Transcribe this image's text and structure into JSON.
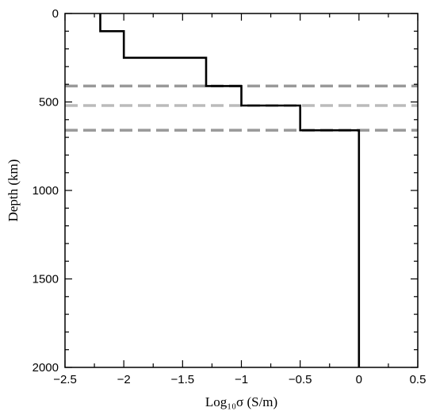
{
  "chart_data": {
    "type": "line",
    "xlabel": "Log₁₀σ (S/m)",
    "ylabel": "Depth (km)",
    "xlim": [
      -2.5,
      0.5
    ],
    "ylim": [
      2000,
      0
    ],
    "y_inverted": true,
    "grid": false,
    "x_ticks": [
      "−2.5",
      "−2",
      "−1.5",
      "−1",
      "−0.5",
      "0",
      "0.5"
    ],
    "y_ticks": [
      "0",
      "500",
      "1000",
      "1500",
      "2000"
    ],
    "series": [
      {
        "style": "step",
        "color": "#000000",
        "points": [
          {
            "x": -2.2,
            "y": 0
          },
          {
            "x": -2.2,
            "y": 100
          },
          {
            "x": -2.0,
            "y": 100
          },
          {
            "x": -2.0,
            "y": 250
          },
          {
            "x": -1.3,
            "y": 250
          },
          {
            "x": -1.3,
            "y": 410
          },
          {
            "x": -1.0,
            "y": 410
          },
          {
            "x": -1.0,
            "y": 520
          },
          {
            "x": -0.5,
            "y": 520
          },
          {
            "x": -0.5,
            "y": 660
          },
          {
            "x": 0.0,
            "y": 660
          },
          {
            "x": 0.0,
            "y": 2000
          }
        ]
      }
    ],
    "reference_lines": [
      {
        "orientation": "horizontal",
        "y": 410,
        "style": "dashed",
        "color": "#999999"
      },
      {
        "orientation": "horizontal",
        "y": 520,
        "style": "dashed",
        "color": "#bbbbbb"
      },
      {
        "orientation": "horizontal",
        "y": 660,
        "style": "dashed",
        "color": "#999999"
      }
    ]
  }
}
